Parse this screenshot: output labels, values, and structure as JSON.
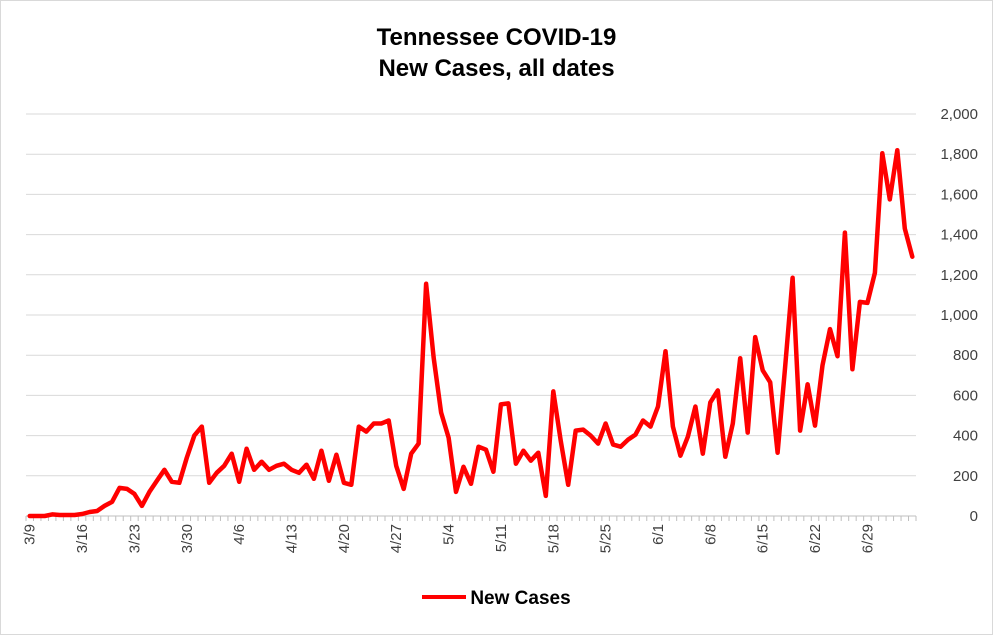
{
  "chart_data": {
    "type": "line",
    "title": "Tennessee COVID-19",
    "subtitle": "New Cases, all dates",
    "xlabel": "",
    "ylabel": "",
    "y_axis_position": "right",
    "ylim": [
      0,
      2000
    ],
    "y_ticks": [
      "0",
      "200",
      "400",
      "600",
      "800",
      "1,000",
      "1,200",
      "1,400",
      "1,600",
      "1,800",
      "2,000"
    ],
    "x_tick_labels": [
      "3/9",
      "3/16",
      "3/23",
      "3/30",
      "4/6",
      "4/13",
      "4/20",
      "4/27",
      "5/4",
      "5/11",
      "5/18",
      "5/25",
      "6/1",
      "6/8",
      "6/15",
      "6/22",
      "6/29"
    ],
    "x_tick_day_index": [
      0,
      7,
      14,
      21,
      28,
      35,
      42,
      49,
      56,
      63,
      70,
      77,
      84,
      91,
      98,
      105,
      112
    ],
    "grid": true,
    "legend_position": "bottom",
    "series": [
      {
        "name": "New Cases",
        "color": "#ff0000",
        "values": [
          0,
          0,
          0,
          8,
          5,
          5,
          5,
          10,
          20,
          25,
          50,
          70,
          140,
          135,
          110,
          50,
          120,
          175,
          230,
          170,
          165,
          290,
          400,
          445,
          165,
          215,
          250,
          310,
          170,
          335,
          230,
          270,
          230,
          250,
          260,
          230,
          215,
          255,
          185,
          325,
          175,
          305,
          165,
          155,
          445,
          420,
          460,
          460,
          475,
          250,
          135,
          310,
          360,
          1155,
          790,
          515,
          390,
          120,
          245,
          160,
          345,
          330,
          220,
          555,
          560,
          260,
          325,
          275,
          315,
          100,
          620,
          375,
          155,
          425,
          430,
          400,
          360,
          460,
          355,
          345,
          380,
          405,
          475,
          445,
          545,
          820,
          445,
          300,
          395,
          545,
          310,
          565,
          625,
          295,
          460,
          785,
          415,
          890,
          725,
          665,
          315,
          740,
          1185,
          425,
          655,
          450,
          750,
          930,
          795,
          1410,
          730,
          1065,
          1060,
          1210,
          1805,
          1575,
          1820,
          1430,
          1290
        ]
      }
    ]
  }
}
